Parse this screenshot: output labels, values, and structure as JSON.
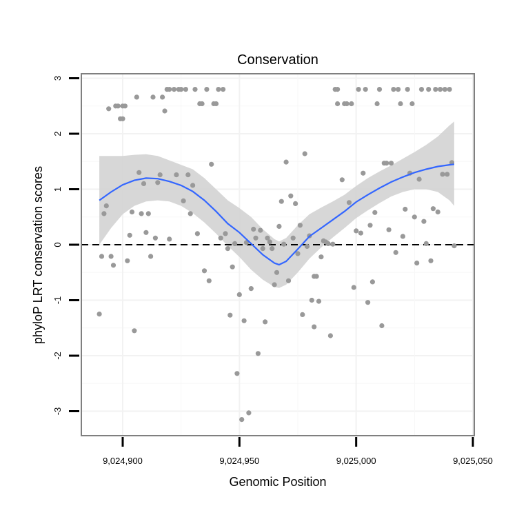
{
  "chart_data": {
    "type": "scatter",
    "title": "Conservation",
    "xlabel": "Genomic Position",
    "ylabel": "phyloP LRT conservation scores",
    "xlim": [
      9024880,
      9025050
    ],
    "ylim": [
      -3.3,
      3.1
    ],
    "x_ticks": [
      {
        "value": 9024900,
        "label": "9,024,900"
      },
      {
        "value": 9024950,
        "label": "9,024,950"
      },
      {
        "value": 9025000,
        "label": "9,025,000"
      },
      {
        "value": 9025050,
        "label": "9,025,050"
      }
    ],
    "y_ticks": [
      {
        "value": 3,
        "label": "3"
      },
      {
        "value": 2,
        "label": "2"
      },
      {
        "value": 1,
        "label": "1"
      },
      {
        "value": 0,
        "label": "0"
      },
      {
        "value": -1,
        "label": "-1"
      },
      {
        "value": -2,
        "label": "-2"
      },
      {
        "value": -3,
        "label": "-3"
      }
    ],
    "reference_line": {
      "y": 0,
      "style": "dashed",
      "color": "#000000"
    },
    "points_color": "#999999",
    "smooth_color": "#3366ff",
    "band_color": "#d3d3d3",
    "points": [
      [
        9024890,
        -1.25
      ],
      [
        9024891,
        -0.21
      ],
      [
        9024892,
        0.56
      ],
      [
        9024893,
        0.7
      ],
      [
        9024894,
        2.45
      ],
      [
        9024895,
        -0.21
      ],
      [
        9024896,
        -0.37
      ],
      [
        9024897,
        2.5
      ],
      [
        9024898,
        2.5
      ],
      [
        9024899,
        2.27
      ],
      [
        9024900,
        2.27
      ],
      [
        9024900,
        2.5
      ],
      [
        9024901,
        2.5
      ],
      [
        9024902,
        -0.29
      ],
      [
        9024903,
        0.17
      ],
      [
        9024904,
        0.59
      ],
      [
        9024905,
        -1.55
      ],
      [
        9024906,
        2.66
      ],
      [
        9024907,
        1.3
      ],
      [
        9024908,
        0.56
      ],
      [
        9024909,
        1.1
      ],
      [
        9024910,
        0.22
      ],
      [
        9024911,
        0.56
      ],
      [
        9024912,
        -0.21
      ],
      [
        9024913,
        2.66
      ],
      [
        9024914,
        0.12
      ],
      [
        9024915,
        1.12
      ],
      [
        9024916,
        1.26
      ],
      [
        9024917,
        2.66
      ],
      [
        9024918,
        2.41
      ],
      [
        9024919,
        2.8
      ],
      [
        9024920,
        0.1
      ],
      [
        9024920,
        2.8
      ],
      [
        9024922,
        2.8
      ],
      [
        9024923,
        1.26
      ],
      [
        9024924,
        2.8
      ],
      [
        9024925,
        2.8
      ],
      [
        9024926,
        0.79
      ],
      [
        9024927,
        2.8
      ],
      [
        9024928,
        1.26
      ],
      [
        9024929,
        0.56
      ],
      [
        9024930,
        1.07
      ],
      [
        9024931,
        2.8
      ],
      [
        9024932,
        0.2
      ],
      [
        9024933,
        2.54
      ],
      [
        9024934,
        2.54
      ],
      [
        9024935,
        -0.47
      ],
      [
        9024936,
        2.8
      ],
      [
        9024937,
        -0.65
      ],
      [
        9024938,
        1.45
      ],
      [
        9024939,
        2.54
      ],
      [
        9024940,
        2.54
      ],
      [
        9024941,
        2.8
      ],
      [
        9024942,
        0.12
      ],
      [
        9024943,
        2.8
      ],
      [
        9024944,
        0.2
      ],
      [
        9024945,
        -0.07
      ],
      [
        9024946,
        -1.27
      ],
      [
        9024947,
        -0.4
      ],
      [
        9024948,
        0.02
      ],
      [
        9024949,
        -2.32
      ],
      [
        9024950,
        -0.9
      ],
      [
        9024951,
        -3.15
      ],
      [
        9024952,
        -1.37
      ],
      [
        9024953,
        0.04
      ],
      [
        9024954,
        -3.03
      ],
      [
        9024955,
        -0.79
      ],
      [
        9024956,
        0.28
      ],
      [
        9024957,
        0.12
      ],
      [
        9024958,
        -1.96
      ],
      [
        9024959,
        0.26
      ],
      [
        9024960,
        -0.07
      ],
      [
        9024961,
        -1.39
      ],
      [
        9024962,
        0.12
      ],
      [
        9024963,
        0.05
      ],
      [
        9024964,
        -0.07
      ],
      [
        9024965,
        -0.72
      ],
      [
        9024966,
        -0.5
      ],
      [
        9024967,
        0.33
      ],
      [
        9024968,
        0.78
      ],
      [
        9024969,
        0.01
      ],
      [
        9024970,
        1.49
      ],
      [
        9024971,
        -0.65
      ],
      [
        9024972,
        0.88
      ],
      [
        9024973,
        0.12
      ],
      [
        9024974,
        0.74
      ],
      [
        9024975,
        -0.16
      ],
      [
        9024976,
        0.35
      ],
      [
        9024977,
        -1.26
      ],
      [
        9024978,
        1.64
      ],
      [
        9024979,
        -0.03
      ],
      [
        9024980,
        0.16
      ],
      [
        9024981,
        -1
      ],
      [
        9024982,
        -1.48
      ],
      [
        9024982,
        -0.57
      ],
      [
        9024983,
        -0.57
      ],
      [
        9024984,
        -1.02
      ],
      [
        9024985,
        -0.22
      ],
      [
        9024986,
        0.07
      ],
      [
        9024987,
        0.05
      ],
      [
        9024988,
        0.02
      ],
      [
        9024989,
        -1.64
      ],
      [
        9024990,
        0.01
      ],
      [
        9024991,
        2.8
      ],
      [
        9024992,
        2.8
      ],
      [
        9024992,
        2.54
      ],
      [
        9024994,
        1.17
      ],
      [
        9024995,
        2.54
      ],
      [
        9024996,
        2.54
      ],
      [
        9024997,
        0.76
      ],
      [
        9024998,
        2.54
      ],
      [
        9024999,
        -0.77
      ],
      [
        9025000,
        0.25
      ],
      [
        9025001,
        2.8
      ],
      [
        9025002,
        0.21
      ],
      [
        9025003,
        1.29
      ],
      [
        9025004,
        2.8
      ],
      [
        9025005,
        -1.04
      ],
      [
        9025006,
        0.35
      ],
      [
        9025007,
        -0.67
      ],
      [
        9025008,
        0.58
      ],
      [
        9025009,
        2.54
      ],
      [
        9025010,
        2.8
      ],
      [
        9025011,
        -1.46
      ],
      [
        9025012,
        1.47
      ],
      [
        9025013,
        1.47
      ],
      [
        9025014,
        0.27
      ],
      [
        9025015,
        1.47
      ],
      [
        9025016,
        2.8
      ],
      [
        9025017,
        -0.14
      ],
      [
        9025018,
        2.8
      ],
      [
        9025019,
        2.54
      ],
      [
        9025020,
        0.15
      ],
      [
        9025021,
        0.64
      ],
      [
        9025022,
        2.8
      ],
      [
        9025023,
        1.29
      ],
      [
        9025024,
        2.54
      ],
      [
        9025025,
        0.5
      ],
      [
        9025026,
        -0.33
      ],
      [
        9025027,
        1.18
      ],
      [
        9025028,
        2.8
      ],
      [
        9025029,
        0.42
      ],
      [
        9025030,
        0.02
      ],
      [
        9025031,
        2.8
      ],
      [
        9025032,
        -0.29
      ],
      [
        9025033,
        0.65
      ],
      [
        9025034,
        2.8
      ],
      [
        9025035,
        0.59
      ],
      [
        9025036,
        2.8
      ],
      [
        9025037,
        1.27
      ],
      [
        9025038,
        2.8
      ],
      [
        9025039,
        1.27
      ],
      [
        9025040,
        2.8
      ],
      [
        9025041,
        1.48
      ],
      [
        9025042,
        -0.02
      ]
    ],
    "smooth": {
      "x": [
        9024890,
        9024895,
        9024900,
        9024905,
        9024910,
        9024915,
        9024920,
        9024925,
        9024930,
        9024935,
        9024940,
        9024945,
        9024950,
        9024955,
        9024960,
        9024965,
        9024967,
        9024970,
        9024975,
        9024980,
        9024985,
        9024990,
        9024995,
        9025000,
        9025005,
        9025010,
        9025015,
        9025020,
        9025025,
        9025030,
        9025035,
        9025040,
        9025042
      ],
      "y": [
        0.8,
        0.95,
        1.08,
        1.16,
        1.2,
        1.19,
        1.14,
        1.07,
        0.96,
        0.8,
        0.6,
        0.38,
        0.22,
        0.02,
        -0.18,
        -0.33,
        -0.36,
        -0.3,
        -0.08,
        0.15,
        0.3,
        0.45,
        0.6,
        0.77,
        0.9,
        1.02,
        1.13,
        1.22,
        1.3,
        1.36,
        1.41,
        1.44,
        1.45
      ],
      "lower": [
        0.0,
        0.3,
        0.55,
        0.7,
        0.78,
        0.8,
        0.78,
        0.7,
        0.57,
        0.4,
        0.2,
        -0.02,
        -0.22,
        -0.45,
        -0.63,
        -0.76,
        -0.78,
        -0.72,
        -0.5,
        -0.25,
        -0.05,
        0.13,
        0.3,
        0.48,
        0.62,
        0.75,
        0.87,
        0.95,
        1.0,
        1.0,
        0.95,
        0.8,
        0.7
      ],
      "upper": [
        1.6,
        1.6,
        1.6,
        1.62,
        1.63,
        1.6,
        1.52,
        1.44,
        1.36,
        1.2,
        1.0,
        0.8,
        0.66,
        0.5,
        0.28,
        0.1,
        0.06,
        0.12,
        0.35,
        0.55,
        0.67,
        0.78,
        0.9,
        1.06,
        1.2,
        1.32,
        1.43,
        1.55,
        1.67,
        1.8,
        1.95,
        2.15,
        2.22
      ]
    }
  }
}
